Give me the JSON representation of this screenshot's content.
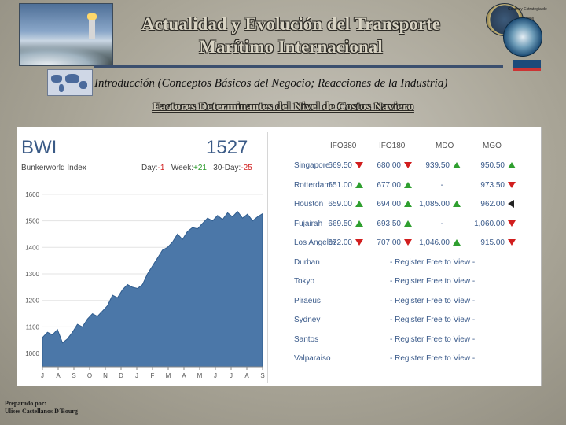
{
  "header": {
    "title_line1": "Actualidad y Evolución del Transporte",
    "title_line2": "Marítimo Internacional",
    "subtitle": "Introducción (Conceptos Básicos del Negocio; Reacciones de la Industria)",
    "section_title": "Factores Determinantes del Nivel de Costos Naviero",
    "seal_text1": "Centro y Estrategia de",
    "seal_text2": "Estudios"
  },
  "bwi": {
    "name": "BWI",
    "value": "1527",
    "subtitle": "Bunkerworld Index",
    "day_label": "Day:",
    "day_value": "-1",
    "week_label": "Week:",
    "week_value": "+21",
    "thirty_label": "30-Day:",
    "thirty_value": "-25"
  },
  "chart_data": {
    "type": "area",
    "x_ticks": [
      "J",
      "A",
      "S",
      "O",
      "N",
      "D",
      "J",
      "F",
      "M",
      "A",
      "M",
      "J",
      "J",
      "A",
      "S"
    ],
    "y_ticks": [
      1000,
      1100,
      1200,
      1300,
      1400,
      1500,
      1600
    ],
    "ylim": [
      950,
      1650
    ],
    "values": [
      1060,
      1080,
      1070,
      1090,
      1040,
      1055,
      1080,
      1110,
      1100,
      1130,
      1150,
      1140,
      1160,
      1180,
      1220,
      1210,
      1240,
      1260,
      1250,
      1245,
      1260,
      1300,
      1330,
      1360,
      1390,
      1400,
      1420,
      1450,
      1430,
      1460,
      1475,
      1470,
      1490,
      1510,
      1500,
      1520,
      1505,
      1530,
      1515,
      1535,
      1510,
      1525,
      1500,
      1515,
      1527
    ],
    "fill_color": "#4b77a8"
  },
  "prices": {
    "columns": [
      "IFO380",
      "IFO180",
      "MDO",
      "MGO"
    ],
    "rows": [
      {
        "port": "Singapore",
        "values": [
          "669.50",
          "680.00",
          "939.50",
          "950.50"
        ],
        "arrows": [
          "down",
          "down",
          "up",
          "up"
        ]
      },
      {
        "port": "Rotterdam",
        "values": [
          "651.00",
          "677.00",
          "-",
          "973.50"
        ],
        "arrows": [
          "up",
          "up",
          "",
          "down"
        ]
      },
      {
        "port": "Houston",
        "values": [
          "659.00",
          "694.00",
          "1,085.00",
          "962.00"
        ],
        "arrows": [
          "up",
          "up",
          "up",
          "left"
        ]
      },
      {
        "port": "Fujairah",
        "values": [
          "669.50",
          "693.50",
          "-",
          "1,060.00"
        ],
        "arrows": [
          "up",
          "up",
          "",
          "down"
        ]
      },
      {
        "port": "Los Angeles",
        "values": [
          "672.00",
          "707.00",
          "1,046.00",
          "915.00"
        ],
        "arrows": [
          "down",
          "down",
          "up",
          "down"
        ]
      }
    ],
    "register_text": "- Register Free to View -",
    "register_ports": [
      "Durban",
      "Tokyo",
      "Piraeus",
      "Sydney",
      "Santos",
      "Valparaiso"
    ]
  },
  "footer": {
    "line1": "Preparado por:",
    "line2": "Ulises Castellanos D´Bourg"
  }
}
